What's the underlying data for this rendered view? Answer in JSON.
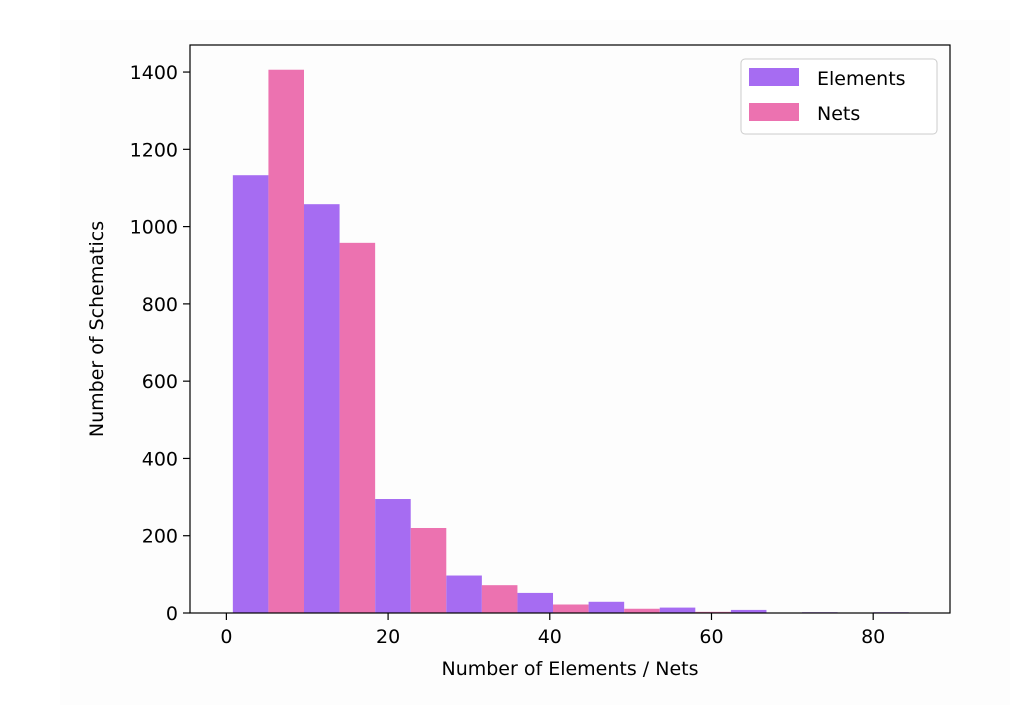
{
  "chart_data": {
    "type": "bar",
    "title": "",
    "xlabel": "Number of Elements / Nets",
    "ylabel": "Number of Schematics",
    "xlim": [
      -4.5,
      89.5
    ],
    "ylim": [
      0,
      1470
    ],
    "xticks": [
      0,
      20,
      40,
      60,
      80
    ],
    "yticks": [
      0,
      200,
      400,
      600,
      800,
      1000,
      1200,
      1400
    ],
    "grid": false,
    "legend_position": "top-right",
    "bin_width": 8.8,
    "bin_starts": [
      0.8,
      9.6,
      18.4,
      27.2,
      36.0,
      44.8,
      53.6,
      62.4,
      71.2,
      80.0
    ],
    "series": [
      {
        "name": "Elements",
        "color": "#a66cf2",
        "values": [
          1133,
          1058,
          295,
          97,
          52,
          29,
          14,
          8,
          2,
          2
        ]
      },
      {
        "name": "Nets",
        "color": "#ec72b0",
        "values": [
          1406,
          958,
          220,
          72,
          22,
          11,
          3,
          1,
          1,
          0
        ]
      }
    ]
  }
}
